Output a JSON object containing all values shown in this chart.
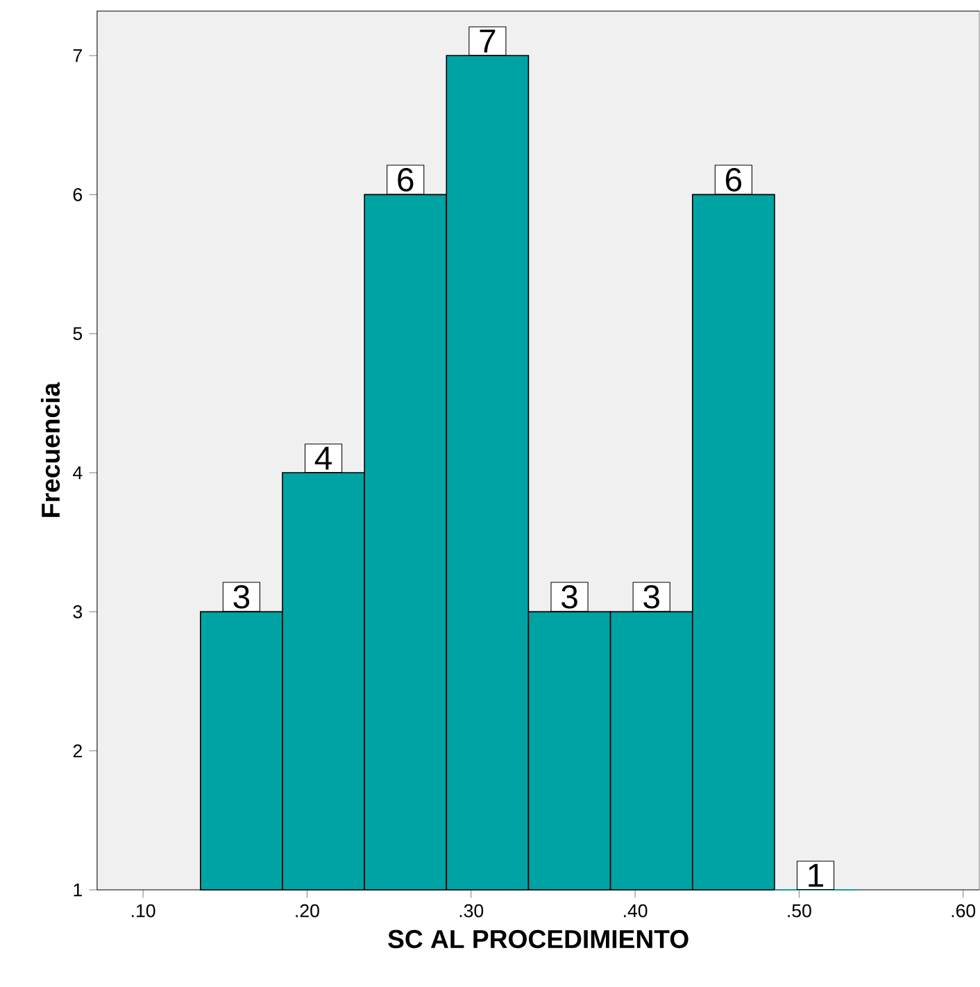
{
  "chart_data": {
    "type": "histogram",
    "xlabel": "SC AL PROCEDIMIENTO",
    "ylabel": "Frecuencia",
    "bins": [
      0.135,
      0.185,
      0.235,
      0.285,
      0.335,
      0.385,
      0.435,
      0.485,
      0.535
    ],
    "values": [
      3,
      4,
      6,
      7,
      3,
      3,
      6,
      1
    ],
    "color": "#00a3a3",
    "xlim": [
      0.072,
      0.61
    ],
    "xticks": [
      {
        "value": 0.1,
        "label": ".10"
      },
      {
        "value": 0.2,
        "label": ".20"
      },
      {
        "value": 0.3,
        "label": ".30"
      },
      {
        "value": 0.4,
        "label": ".40"
      },
      {
        "value": 0.5,
        "label": ".50"
      },
      {
        "value": 0.6,
        "label": ".60"
      }
    ],
    "ylim": [
      1,
      7.32
    ],
    "yticks": [
      1,
      2,
      3,
      4,
      5,
      6,
      7
    ],
    "data_labels": true,
    "grid": false
  }
}
